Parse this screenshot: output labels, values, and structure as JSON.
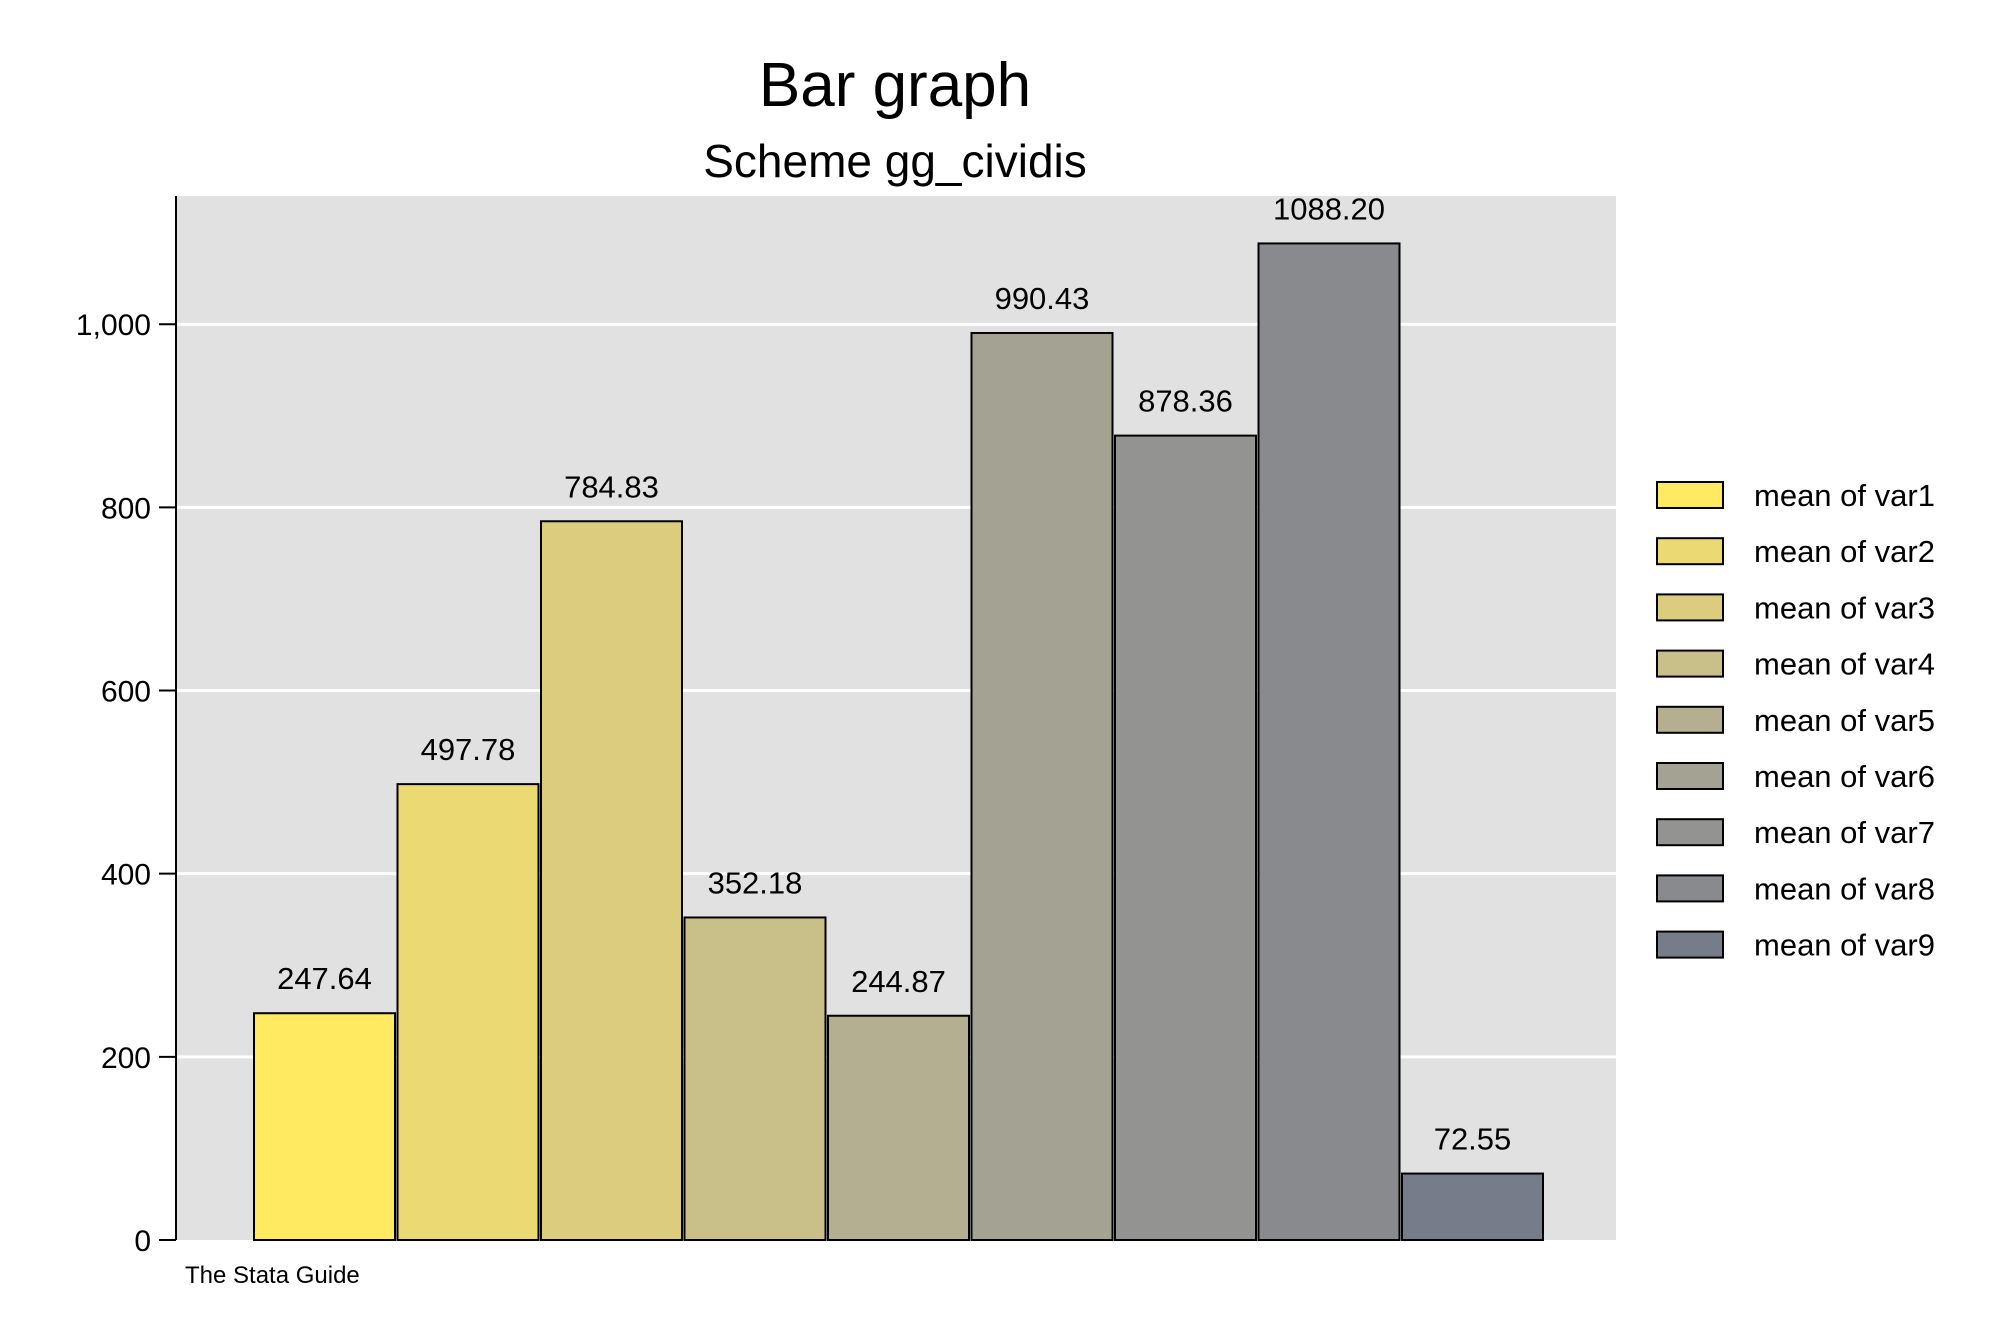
{
  "chart_data": {
    "type": "bar",
    "title": "Bar graph",
    "subtitle": "Scheme gg_cividis",
    "note": "The Stata Guide",
    "ylim": [
      0,
      1140
    ],
    "yticks": [
      0,
      200,
      400,
      600,
      800,
      1000
    ],
    "ytick_labels": [
      "0",
      "200",
      "400",
      "600",
      "800",
      "1,000"
    ],
    "grid": true,
    "legend_position": "right",
    "series": [
      {
        "name": "mean of var1",
        "value": 247.64,
        "label": "247.64",
        "color": "#FFEA61"
      },
      {
        "name": "mean of var2",
        "value": 497.78,
        "label": "497.78",
        "color": "#EBDA74"
      },
      {
        "name": "mean of var3",
        "value": 784.83,
        "label": "784.83",
        "color": "#DCCC7E"
      },
      {
        "name": "mean of var4",
        "value": 352.18,
        "label": "352.18",
        "color": "#C9BF88"
      },
      {
        "name": "mean of var5",
        "value": 244.87,
        "label": "244.87",
        "color": "#B4AF90"
      },
      {
        "name": "mean of var6",
        "value": 990.43,
        "label": "990.43",
        "color": "#A4A292"
      },
      {
        "name": "mean of var7",
        "value": 878.36,
        "label": "878.36",
        "color": "#939392"
      },
      {
        "name": "mean of var8",
        "value": 1088.2,
        "label": "1088.20",
        "color": "#888A8E"
      },
      {
        "name": "mean of var9",
        "value": 72.55,
        "label": "72.55",
        "color": "#767C8A"
      }
    ]
  },
  "colors": {
    "plot_background": "#E1E1E1",
    "gridline": "#FFFFFF",
    "bar_outline": "#000000"
  }
}
